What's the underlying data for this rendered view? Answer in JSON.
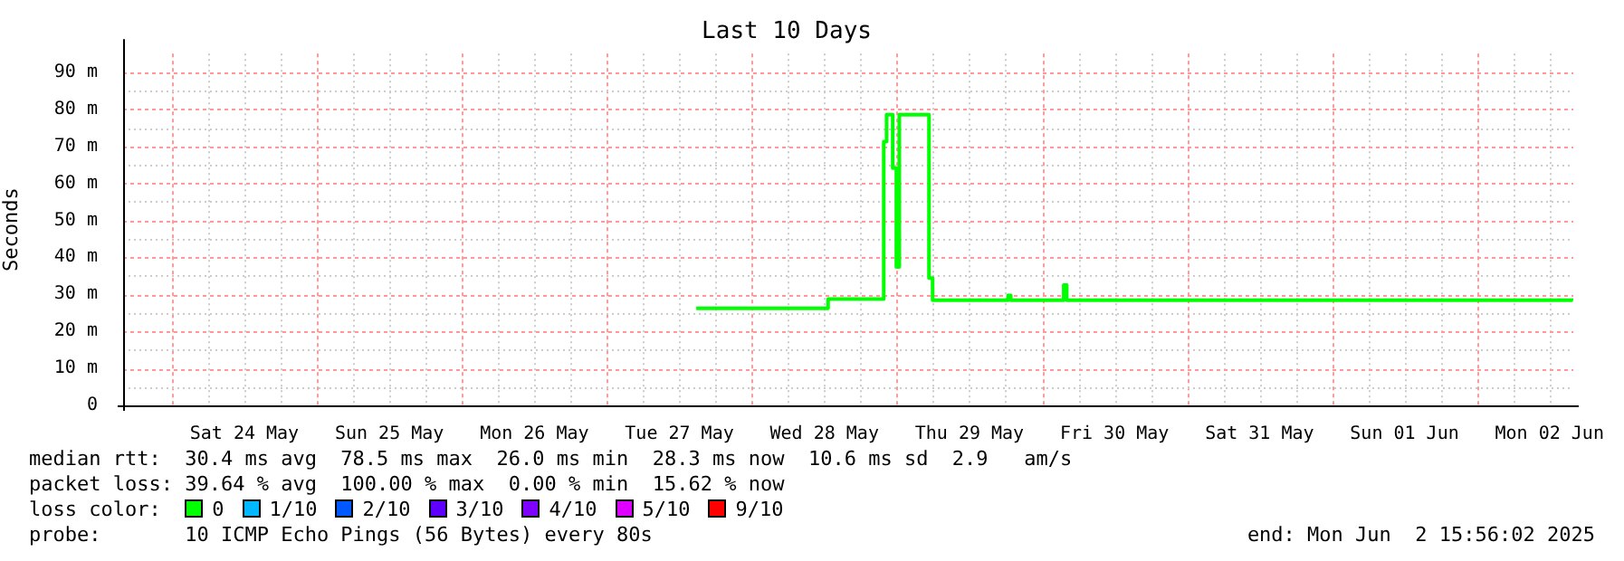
{
  "chart_data": {
    "type": "step",
    "title": "Last 10 Days",
    "ylabel": "Seconds",
    "xlim": [
      "2025-05-23T15:56",
      "2025-06-02T15:56"
    ],
    "xticks": [
      {
        "value": "2025-05-24T00:00",
        "label": null
      },
      {
        "value": "2025-05-24T06:00",
        "label": null
      },
      {
        "value": "2025-05-24T12:00",
        "label": "Sat 24 May"
      },
      {
        "value": "2025-05-24T18:00",
        "label": null
      },
      {
        "value": "2025-05-25T00:00",
        "label": null
      },
      {
        "value": "2025-05-25T06:00",
        "label": null
      },
      {
        "value": "2025-05-25T12:00",
        "label": "Sun 25 May"
      },
      {
        "value": "2025-05-25T18:00",
        "label": null
      },
      {
        "value": "2025-05-26T00:00",
        "label": null
      },
      {
        "value": "2025-05-26T06:00",
        "label": null
      },
      {
        "value": "2025-05-26T12:00",
        "label": "Mon 26 May"
      },
      {
        "value": "2025-05-26T18:00",
        "label": null
      },
      {
        "value": "2025-05-27T00:00",
        "label": null
      },
      {
        "value": "2025-05-27T06:00",
        "label": null
      },
      {
        "value": "2025-05-27T12:00",
        "label": "Tue 27 May"
      },
      {
        "value": "2025-05-27T18:00",
        "label": null
      },
      {
        "value": "2025-05-28T00:00",
        "label": null
      },
      {
        "value": "2025-05-28T06:00",
        "label": null
      },
      {
        "value": "2025-05-28T12:00",
        "label": "Wed 28 May"
      },
      {
        "value": "2025-05-28T18:00",
        "label": null
      },
      {
        "value": "2025-05-29T00:00",
        "label": null
      },
      {
        "value": "2025-05-29T06:00",
        "label": null
      },
      {
        "value": "2025-05-29T12:00",
        "label": "Thu 29 May"
      },
      {
        "value": "2025-05-29T18:00",
        "label": null
      },
      {
        "value": "2025-05-30T00:00",
        "label": null
      },
      {
        "value": "2025-05-30T06:00",
        "label": null
      },
      {
        "value": "2025-05-30T12:00",
        "label": "Fri 30 May"
      },
      {
        "value": "2025-05-30T18:00",
        "label": null
      },
      {
        "value": "2025-05-31T00:00",
        "label": null
      },
      {
        "value": "2025-05-31T06:00",
        "label": null
      },
      {
        "value": "2025-05-31T12:00",
        "label": "Sat 31 May"
      },
      {
        "value": "2025-05-31T18:00",
        "label": null
      },
      {
        "value": "2025-06-01T00:00",
        "label": null
      },
      {
        "value": "2025-06-01T06:00",
        "label": null
      },
      {
        "value": "2025-06-01T12:00",
        "label": "Sun 01 Jun"
      },
      {
        "value": "2025-06-01T18:00",
        "label": null
      },
      {
        "value": "2025-06-02T00:00",
        "label": null
      },
      {
        "value": "2025-06-02T06:00",
        "label": null
      },
      {
        "value": "2025-06-02T12:00",
        "label": "Mon 02 Jun"
      }
    ],
    "ylim": [
      0,
      95
    ],
    "yticks": [
      {
        "value": 0,
        "label": "0"
      },
      {
        "value": 5,
        "label": null
      },
      {
        "value": 10,
        "label": "10 m"
      },
      {
        "value": 15,
        "label": null
      },
      {
        "value": 20,
        "label": "20 m"
      },
      {
        "value": 25,
        "label": null
      },
      {
        "value": 30,
        "label": "30 m"
      },
      {
        "value": 35,
        "label": null
      },
      {
        "value": 40,
        "label": "40 m"
      },
      {
        "value": 45,
        "label": null
      },
      {
        "value": 50,
        "label": "50 m"
      },
      {
        "value": 55,
        "label": null
      },
      {
        "value": 60,
        "label": "60 m"
      },
      {
        "value": 65,
        "label": null
      },
      {
        "value": 70,
        "label": "70 m"
      },
      {
        "value": 75,
        "label": null
      },
      {
        "value": 80,
        "label": "80 m"
      },
      {
        "value": 85,
        "label": null
      },
      {
        "value": 90,
        "label": "90 m"
      }
    ],
    "grid": true,
    "legend": "bottom",
    "legend_title": "loss color:",
    "x": [
      "2025-05-27T14:47",
      "2025-05-28T12:36",
      "2025-05-28T21:49",
      "2025-05-28T22:17",
      "2025-05-28T23:18",
      "2025-05-28T23:54",
      "2025-05-29T00:23",
      "2025-05-29T05:18",
      "2025-05-29T05:54",
      "2025-05-29T18:23",
      "2025-05-29T18:50",
      "2025-05-30T03:36",
      "2025-05-30T04:06",
      "2025-06-02T15:50"
    ],
    "series": [
      {
        "name": "0",
        "color": "#00ff00",
        "values": [
          26.2,
          28.7,
          71.2,
          78.5,
          64.1,
          37.4,
          78.5,
          34.4,
          28.4,
          29.7,
          28.4,
          32.5,
          28.4,
          28.3
        ]
      },
      {
        "name": "1/10",
        "color": "#00b8ff",
        "values": [
          null,
          null,
          null,
          null,
          null,
          null,
          null,
          null,
          null,
          null,
          null,
          null,
          null,
          null
        ]
      },
      {
        "name": "2/10",
        "color": "#0059ff",
        "values": [
          null,
          null,
          null,
          null,
          null,
          null,
          null,
          null,
          null,
          null,
          null,
          null,
          null,
          null
        ]
      },
      {
        "name": "3/10",
        "color": "#5e00ff",
        "values": [
          null,
          null,
          null,
          null,
          null,
          null,
          null,
          null,
          null,
          null,
          null,
          null,
          null,
          null
        ]
      },
      {
        "name": "4/10",
        "color": "#7e00ff",
        "values": [
          null,
          null,
          null,
          null,
          null,
          null,
          null,
          null,
          null,
          null,
          null,
          null,
          null,
          null
        ]
      },
      {
        "name": "5/10",
        "color": "#dd00ff",
        "values": [
          null,
          null,
          null,
          null,
          null,
          null,
          null,
          null,
          null,
          null,
          null,
          null,
          null,
          null
        ]
      },
      {
        "name": "9/10",
        "color": "#ff0000",
        "values": [
          null,
          null,
          null,
          null,
          null,
          null,
          null,
          null,
          null,
          null,
          null,
          null,
          null,
          null
        ]
      }
    ],
    "annotations": [
      "median rtt:  30.4 ms avg  78.5 ms max  26.0 ms min  28.3 ms now  10.6 ms sd  2.9   am/s",
      "packet loss: 39.64 % avg  100.00 % max  0.00 % min  15.62 % now",
      "probe:       10 ICMP Echo Pings (56 Bytes) every 80s",
      "end: Mon Jun  2 15:56:02 2025"
    ]
  }
}
